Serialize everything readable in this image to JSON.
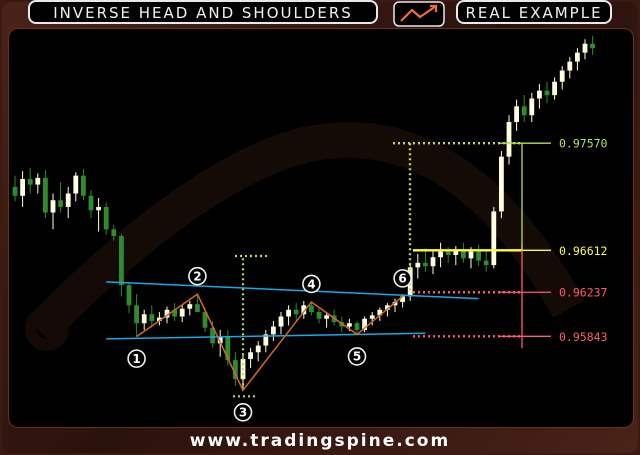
{
  "header": {
    "title": "INVERSE HEAD AND SHOULDERS",
    "subtitle": "REAL EXAMPLE"
  },
  "footer": {
    "website": "www.tradingspine.com"
  },
  "colors": {
    "bull_candle": "#ffffe0",
    "bear_candle": "#2e8b2e",
    "neckline": "#19a8e8",
    "pattern_line": "#d2691e",
    "target_line": "#b8e05a",
    "entry_line": "#ffff33",
    "stop_line": "#ff5a6e"
  },
  "chart_data": {
    "type": "candlestick",
    "price_levels": [
      {
        "label": "0.97570",
        "value": 0.9757,
        "role": "target",
        "color": "#b8e05a"
      },
      {
        "label": "0.96612",
        "value": 0.96612,
        "role": "entry",
        "color": "#ffff33"
      },
      {
        "label": "0.96237",
        "value": 0.96237,
        "role": "neckline-break",
        "color": "#ff5a6e"
      },
      {
        "label": "0.95843",
        "value": 0.95843,
        "role": "stop",
        "color": "#ff5a6e"
      }
    ],
    "pattern_points": [
      {
        "label": "1",
        "bar": 16,
        "price": 0.9584
      },
      {
        "label": "2",
        "bar": 24,
        "price": 0.9622
      },
      {
        "label": "3",
        "bar": 30,
        "price": 0.9536
      },
      {
        "label": "4",
        "bar": 39,
        "price": 0.9615
      },
      {
        "label": "5",
        "bar": 45,
        "price": 0.9586
      },
      {
        "label": "6",
        "bar": 51,
        "price": 0.962
      }
    ],
    "neckline": {
      "from": {
        "bar": 12,
        "price": 0.9633
      },
      "to": {
        "bar": 61,
        "price": 0.9618
      }
    },
    "support_line": {
      "from": {
        "bar": 12,
        "price": 0.9582
      },
      "to": {
        "bar": 54,
        "price": 0.9587
      }
    },
    "candles": [
      [
        0.9718,
        0.9728,
        0.9705,
        0.971
      ],
      [
        0.971,
        0.9732,
        0.97,
        0.9725
      ],
      [
        0.9725,
        0.9735,
        0.9712,
        0.972
      ],
      [
        0.972,
        0.973,
        0.9712,
        0.9726
      ],
      [
        0.9726,
        0.9733,
        0.969,
        0.9695
      ],
      [
        0.9695,
        0.9712,
        0.968,
        0.9706
      ],
      [
        0.9706,
        0.9722,
        0.9695,
        0.97
      ],
      [
        0.97,
        0.9718,
        0.969,
        0.9712
      ],
      [
        0.9712,
        0.9731,
        0.9705,
        0.9728
      ],
      [
        0.9728,
        0.9734,
        0.9706,
        0.971
      ],
      [
        0.971,
        0.9715,
        0.969,
        0.9697
      ],
      [
        0.9697,
        0.9708,
        0.9678,
        0.97
      ],
      [
        0.97,
        0.9704,
        0.9675,
        0.968
      ],
      [
        0.968,
        0.9684,
        0.967,
        0.9674
      ],
      [
        0.9674,
        0.9676,
        0.962,
        0.963
      ],
      [
        0.963,
        0.9633,
        0.9605,
        0.9612
      ],
      [
        0.9612,
        0.9622,
        0.9584,
        0.9596
      ],
      [
        0.9596,
        0.9608,
        0.959,
        0.9604
      ],
      [
        0.9604,
        0.9612,
        0.9592,
        0.9598
      ],
      [
        0.9598,
        0.9606,
        0.9594,
        0.9601
      ],
      [
        0.9601,
        0.9611,
        0.9596,
        0.9608
      ],
      [
        0.9608,
        0.9614,
        0.9598,
        0.9602
      ],
      [
        0.9602,
        0.9612,
        0.9597,
        0.9609
      ],
      [
        0.9609,
        0.9616,
        0.9603,
        0.9613
      ],
      [
        0.9613,
        0.9622,
        0.9607,
        0.9606
      ],
      [
        0.9606,
        0.961,
        0.9588,
        0.9592
      ],
      [
        0.9592,
        0.9598,
        0.9574,
        0.9578
      ],
      [
        0.9578,
        0.959,
        0.9566,
        0.9584
      ],
      [
        0.9584,
        0.959,
        0.9558,
        0.9563
      ],
      [
        0.9563,
        0.957,
        0.954,
        0.9546
      ],
      [
        0.9546,
        0.9568,
        0.9536,
        0.9564
      ],
      [
        0.9564,
        0.9574,
        0.9556,
        0.957
      ],
      [
        0.957,
        0.958,
        0.9562,
        0.9576
      ],
      [
        0.9576,
        0.959,
        0.957,
        0.9586
      ],
      [
        0.9586,
        0.9598,
        0.958,
        0.9593
      ],
      [
        0.9593,
        0.9606,
        0.9586,
        0.9602
      ],
      [
        0.9602,
        0.9612,
        0.9594,
        0.9608
      ],
      [
        0.9608,
        0.9614,
        0.9598,
        0.9604
      ],
      [
        0.9604,
        0.9616,
        0.96,
        0.9612
      ],
      [
        0.9612,
        0.9615,
        0.9603,
        0.9606
      ],
      [
        0.9606,
        0.9609,
        0.9596,
        0.96
      ],
      [
        0.96,
        0.9606,
        0.9592,
        0.9603
      ],
      [
        0.9603,
        0.9608,
        0.9594,
        0.9597
      ],
      [
        0.9597,
        0.9602,
        0.9588,
        0.9593
      ],
      [
        0.9593,
        0.96,
        0.9589,
        0.9596
      ],
      [
        0.9596,
        0.9598,
        0.9586,
        0.959
      ],
      [
        0.959,
        0.9602,
        0.9588,
        0.96
      ],
      [
        0.96,
        0.9606,
        0.9594,
        0.9603
      ],
      [
        0.9603,
        0.961,
        0.9598,
        0.9608
      ],
      [
        0.9608,
        0.9614,
        0.9602,
        0.9612
      ],
      [
        0.9612,
        0.9618,
        0.9606,
        0.9615
      ],
      [
        0.9615,
        0.9622,
        0.961,
        0.962
      ],
      [
        0.962,
        0.965,
        0.9616,
        0.9646
      ],
      [
        0.9646,
        0.9658,
        0.9636,
        0.965
      ],
      [
        0.965,
        0.9663,
        0.9642,
        0.9647
      ],
      [
        0.9647,
        0.966,
        0.964,
        0.9655
      ],
      [
        0.9655,
        0.9668,
        0.9646,
        0.966
      ],
      [
        0.966,
        0.9664,
        0.965,
        0.9657
      ],
      [
        0.9657,
        0.9665,
        0.9648,
        0.9662
      ],
      [
        0.9662,
        0.9668,
        0.965,
        0.9654
      ],
      [
        0.9654,
        0.9664,
        0.9645,
        0.966
      ],
      [
        0.966,
        0.9666,
        0.9647,
        0.9652
      ],
      [
        0.9652,
        0.966,
        0.9642,
        0.9648
      ],
      [
        0.9648,
        0.97,
        0.9645,
        0.9696
      ],
      [
        0.9696,
        0.975,
        0.969,
        0.9745
      ],
      [
        0.9745,
        0.9782,
        0.9738,
        0.9776
      ],
      [
        0.9776,
        0.9796,
        0.9768,
        0.979
      ],
      [
        0.979,
        0.98,
        0.9776,
        0.9782
      ],
      [
        0.9782,
        0.9802,
        0.9776,
        0.9797
      ],
      [
        0.9797,
        0.981,
        0.9788,
        0.9804
      ],
      [
        0.9804,
        0.9812,
        0.9793,
        0.98
      ],
      [
        0.98,
        0.9816,
        0.9796,
        0.9812
      ],
      [
        0.9812,
        0.9826,
        0.9805,
        0.9822
      ],
      [
        0.9822,
        0.9834,
        0.9815,
        0.983
      ],
      [
        0.983,
        0.9842,
        0.9822,
        0.9838
      ],
      [
        0.9838,
        0.985,
        0.9832,
        0.9846
      ],
      [
        0.9846,
        0.9853,
        0.9836,
        0.9842
      ]
    ],
    "grid": false
  }
}
